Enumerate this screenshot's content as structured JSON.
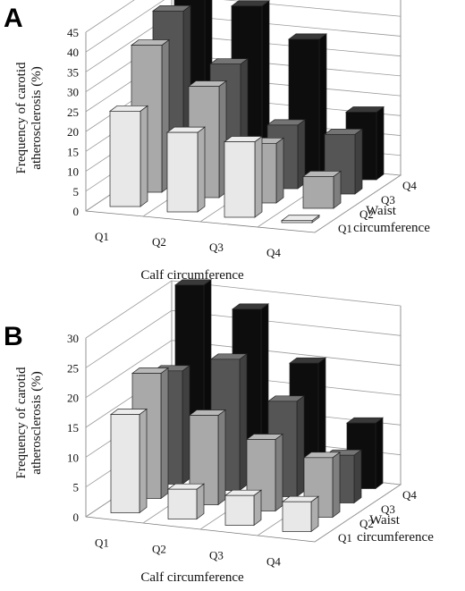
{
  "chart_data": [
    {
      "type": "bar",
      "panel": "A",
      "categories": [
        "Q1",
        "Q2",
        "Q3",
        "Q4"
      ],
      "xlabel": "Calf circumference",
      "ylabel": "Frequency of carotid atherosclerosis (%)",
      "depth_label": "Waist circumference",
      "ylim": [
        0,
        45
      ],
      "yticks": [
        0,
        5,
        10,
        15,
        20,
        25,
        30,
        35,
        40,
        45
      ],
      "grid": true,
      "series": [
        {
          "name": "Q1",
          "color": "#e8e8e8",
          "values": [
            24,
            20,
            19,
            0.5
          ]
        },
        {
          "name": "Q2",
          "color": "#a9a9a9",
          "values": [
            37,
            28,
            15,
            8
          ]
        },
        {
          "name": "Q3",
          "color": "#555555",
          "values": [
            42,
            30,
            16,
            15
          ]
        },
        {
          "name": "Q4",
          "color": "#0d0d0d",
          "values": [
            46,
            41,
            34,
            17
          ]
        }
      ]
    },
    {
      "type": "bar",
      "panel": "B",
      "categories": [
        "Q1",
        "Q2",
        "Q3",
        "Q4"
      ],
      "xlabel": "Calf circumference",
      "ylabel": "Frequency of carotid atherosclerosis (%)",
      "depth_label": "Waist circumference",
      "ylim": [
        0,
        30
      ],
      "yticks": [
        0,
        5,
        10,
        15,
        20,
        25,
        30
      ],
      "grid": true,
      "series": [
        {
          "name": "Q1",
          "color": "#e8e8e8",
          "values": [
            16.5,
            5,
            5,
            5
          ]
        },
        {
          "name": "Q2",
          "color": "#a9a9a9",
          "values": [
            21,
            15,
            12,
            10
          ]
        },
        {
          "name": "Q3",
          "color": "#555555",
          "values": [
            19,
            22,
            16,
            8
          ]
        },
        {
          "name": "Q4",
          "color": "#0d0d0d",
          "values": [
            31,
            28,
            20,
            11
          ]
        }
      ]
    }
  ]
}
